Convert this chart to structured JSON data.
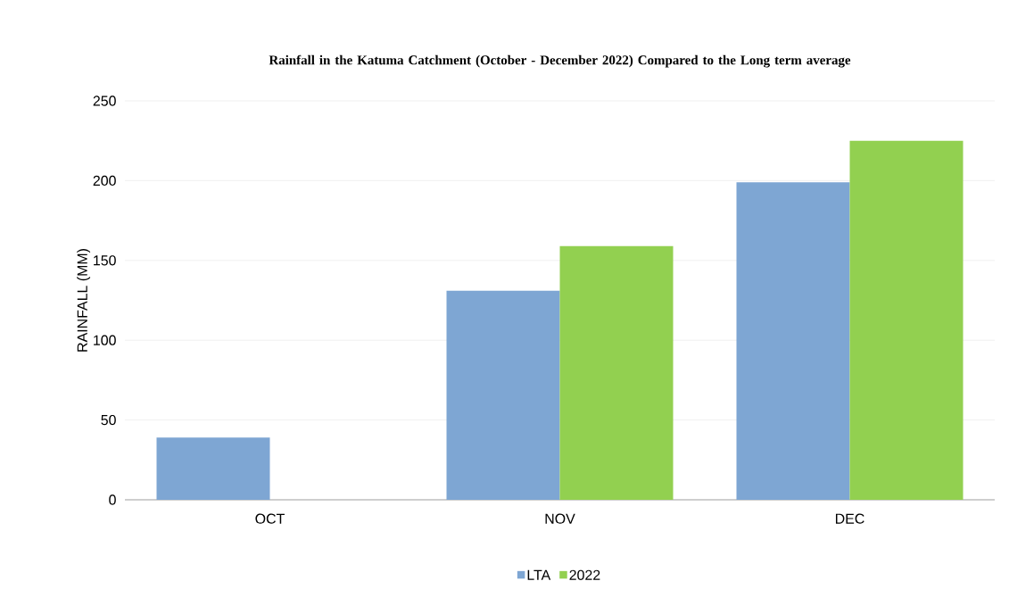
{
  "chart_data": {
    "type": "bar",
    "title": "Rainfall in the Katuma Catchment (October - December 2022) Compared to the Long term average",
    "ylabel": "RAINFALL (MM)",
    "categories": [
      "OCT",
      "NOV",
      "DEC"
    ],
    "series": [
      {
        "name": "LTA",
        "color": "#7ea6d3",
        "values": [
          39,
          131,
          199
        ]
      },
      {
        "name": "2022",
        "color": "#92d050",
        "values": [
          null,
          159,
          225
        ]
      }
    ],
    "ylim": [
      0,
      250
    ],
    "yticks": [
      0,
      50,
      100,
      150,
      200,
      250
    ],
    "grid": "y",
    "legend": "bottom"
  }
}
